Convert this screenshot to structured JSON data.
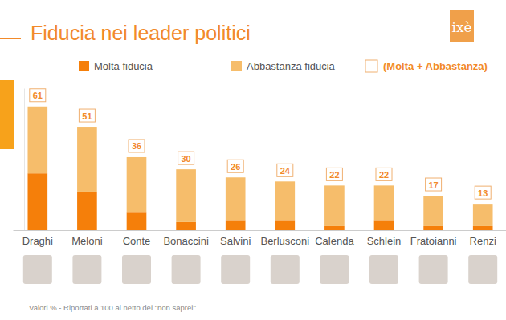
{
  "chart_data": {
    "type": "bar",
    "stacked": true,
    "title": "Fiducia nei leader politici",
    "logo": "ixè",
    "note": "Valori % - Riportati a 100 al netto dei \"non saprei\"",
    "categories": [
      "Draghi",
      "Meloni",
      "Conte",
      "Bonaccini",
      "Salvini",
      "Berlusconi",
      "Calenda",
      "Schlein",
      "Fratoianni",
      "Renzi"
    ],
    "series": [
      {
        "name": "Molta fiducia",
        "color": "#f57f0a",
        "values": [
          28,
          19,
          9,
          4,
          5,
          5,
          2,
          5,
          2,
          2
        ]
      },
      {
        "name": "Abbastanza fiducia",
        "color": "#f6bd6b",
        "values": [
          33,
          32,
          27,
          26,
          21,
          19,
          20,
          17,
          15,
          11
        ]
      }
    ],
    "totals": {
      "name": "(Molta + Abbastanza)",
      "values": [
        61,
        51,
        36,
        30,
        26,
        24,
        22,
        22,
        17,
        13
      ]
    },
    "ylim": [
      0,
      70
    ],
    "yticks": [],
    "tick_labels": "x",
    "grid": false
  }
}
